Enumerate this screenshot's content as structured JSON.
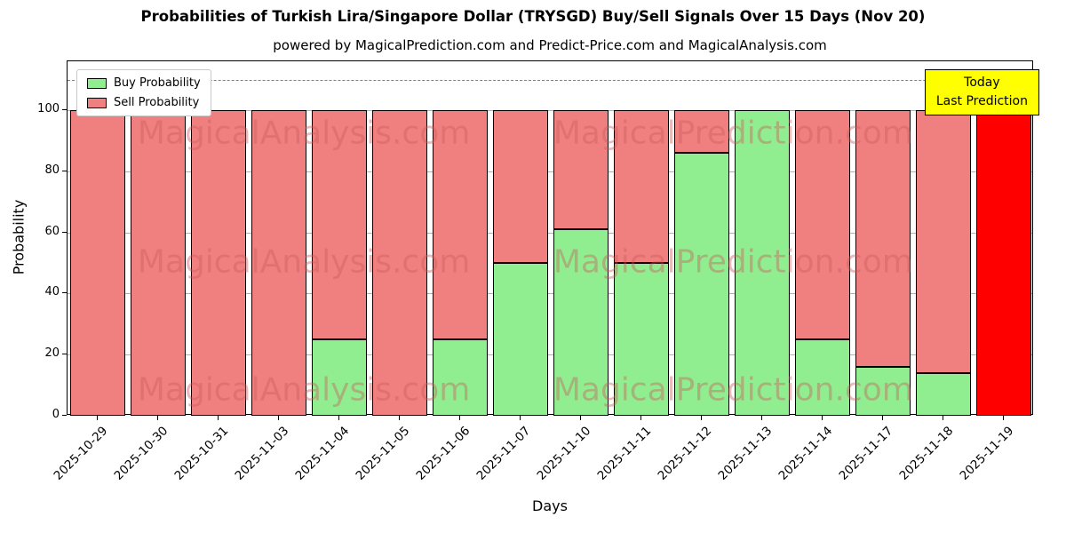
{
  "title": "Probabilities of Turkish Lira/Singapore Dollar (TRYSGD) Buy/Sell Signals Over 15 Days (Nov 20)",
  "subtitle": "powered by MagicalPrediction.com and Predict-Price.com and MagicalAnalysis.com",
  "annotation": {
    "line1": "Today",
    "line2": "Last Prediction",
    "bg_color": "#ffff00"
  },
  "legend": [
    {
      "label": "Buy Probability",
      "color": "#90ee90"
    },
    {
      "label": "Sell Probability",
      "color": "#f08080"
    }
  ],
  "watermark": {
    "left_text": "MagicalAnalysis.com",
    "right_text": "MagicalPrediction.com",
    "color": "rgba(205,92,92,0.42)"
  },
  "chart_data": {
    "type": "bar",
    "stacked": true,
    "title": "Probabilities of Turkish Lira/Singapore Dollar (TRYSGD) Buy/Sell Signals Over 15 Days (Nov 20)",
    "xlabel": "Days",
    "ylabel": "Probability",
    "ylim": [
      0,
      116
    ],
    "yticks": [
      0,
      20,
      40,
      60,
      80,
      100
    ],
    "dashed_line_y": 110,
    "grid": true,
    "legend_position": "upper-left",
    "categories": [
      "2025-10-29",
      "2025-10-30",
      "2025-10-31",
      "2025-11-03",
      "2025-11-04",
      "2025-11-05",
      "2025-11-06",
      "2025-11-07",
      "2025-11-10",
      "2025-11-11",
      "2025-11-12",
      "2025-11-13",
      "2025-11-14",
      "2025-11-17",
      "2025-11-18",
      "2025-11-19"
    ],
    "series": [
      {
        "name": "Buy Probability",
        "color": "#90ee90",
        "values": [
          0,
          0,
          0,
          0,
          25,
          0,
          25,
          50,
          61,
          50,
          86,
          100,
          25,
          16,
          14,
          0
        ]
      },
      {
        "name": "Sell Probability",
        "color": "#f08080",
        "values": [
          100,
          100,
          100,
          100,
          75,
          100,
          75,
          50,
          39,
          50,
          14,
          0,
          75,
          84,
          86,
          100
        ]
      }
    ],
    "highlight_index": 15,
    "highlight_color": "#ff0000"
  }
}
